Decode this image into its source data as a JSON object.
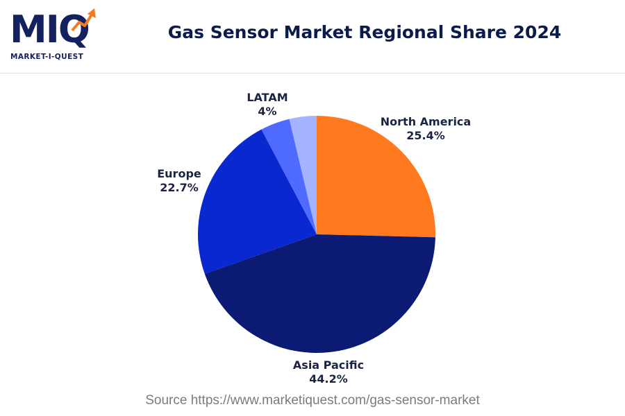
{
  "header": {
    "logo_mark": "MIQ",
    "logo_text": "MARKET-I-QUEST",
    "title": "Gas Sensor Market Regional Share 2024"
  },
  "footer": {
    "source": "Source https://www.marketiquest.com/gas-sensor-market"
  },
  "colors": {
    "north_america": "#ff7a1e",
    "asia_pacific": "#0b1a72",
    "europe": "#0a28d0",
    "latam": "#4f6bff",
    "other": "#a3b3ff"
  },
  "chart_data": {
    "type": "pie",
    "title": "Gas Sensor Market Regional Share 2024",
    "slices": [
      {
        "label": "North America",
        "value_label": "25.4%",
        "value": 25.4,
        "color": "#ff7a1e"
      },
      {
        "label": "Asia Pacific",
        "value_label": "44.2%",
        "value": 44.2,
        "color": "#0b1a72"
      },
      {
        "label": "Europe",
        "value_label": "22.7%",
        "value": 22.7,
        "color": "#0a28d0"
      },
      {
        "label": "LATAM",
        "value_label": "4%",
        "value": 4.0,
        "color": "#4f6bff"
      },
      {
        "label": "",
        "value_label": "",
        "value": 3.7,
        "color": "#a3b3ff"
      }
    ]
  }
}
